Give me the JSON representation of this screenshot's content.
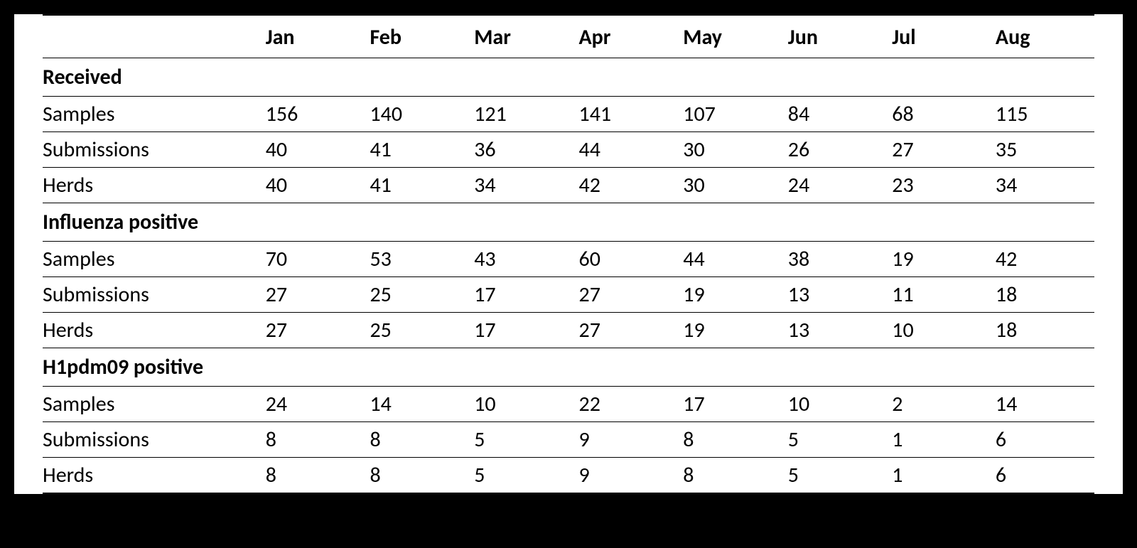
{
  "table": {
    "type": "table",
    "background_color": "#ffffff",
    "page_background_color": "#000000",
    "text_color": "#000000",
    "border_color": "#000000",
    "font_family": "Calibri",
    "header_fontsize": 30,
    "cell_fontsize": 30,
    "label_col_width": 320,
    "month_col_width": 155,
    "top_rule_width": 2,
    "row_rule_width": 1.5,
    "bottom_rule_width": 2.5,
    "columns": [
      "",
      "Jan",
      "Feb",
      "Mar",
      "Apr",
      "May",
      "Jun",
      "Jul",
      "Aug"
    ],
    "sections": [
      {
        "title": "Received",
        "rows": [
          {
            "label": "Samples",
            "values": [
              156,
              140,
              121,
              141,
              107,
              84,
              68,
              115
            ]
          },
          {
            "label": "Submissions",
            "values": [
              40,
              41,
              36,
              44,
              30,
              26,
              27,
              35
            ]
          },
          {
            "label": "Herds",
            "values": [
              40,
              41,
              34,
              42,
              30,
              24,
              23,
              34
            ]
          }
        ]
      },
      {
        "title": "Influenza positive",
        "rows": [
          {
            "label": "Samples",
            "values": [
              70,
              53,
              43,
              60,
              44,
              38,
              19,
              42
            ]
          },
          {
            "label": "Submissions",
            "values": [
              27,
              25,
              17,
              27,
              19,
              13,
              11,
              18
            ]
          },
          {
            "label": "Herds",
            "values": [
              27,
              25,
              17,
              27,
              19,
              13,
              10,
              18
            ]
          }
        ]
      },
      {
        "title": "H1pdm09 positive",
        "rows": [
          {
            "label": "Samples",
            "values": [
              24,
              14,
              10,
              22,
              17,
              10,
              2,
              14
            ]
          },
          {
            "label": "Submissions",
            "values": [
              8,
              8,
              5,
              9,
              8,
              5,
              1,
              6
            ]
          },
          {
            "label": "Herds",
            "values": [
              8,
              8,
              5,
              9,
              8,
              5,
              1,
              6
            ]
          }
        ]
      }
    ]
  }
}
